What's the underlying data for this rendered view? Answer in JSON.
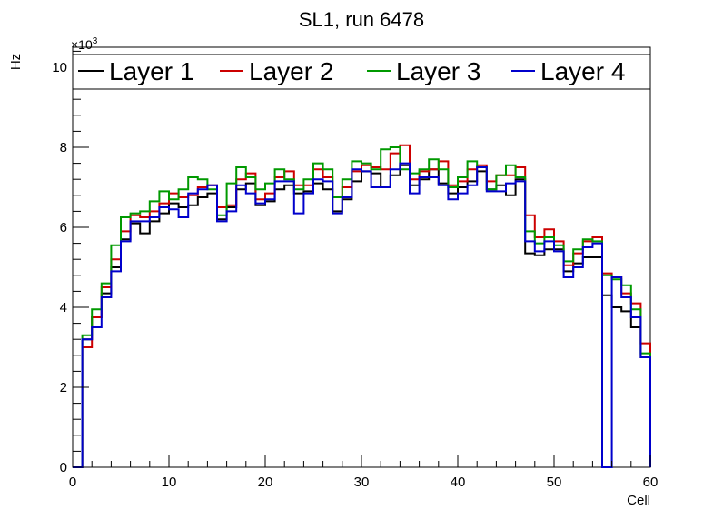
{
  "chart_data": {
    "type": "step-histogram",
    "title": "SL1, run 6478",
    "xlabel": "Cell",
    "ylabel": "Hz",
    "y_multiplier": "×10",
    "y_multiplier_exp": "3",
    "xlim": [
      0,
      60
    ],
    "ylim": [
      0,
      10.5
    ],
    "x_ticks": [
      0,
      10,
      20,
      30,
      40,
      50,
      60
    ],
    "y_ticks": [
      0,
      2,
      4,
      6,
      8,
      10
    ],
    "x_tick_labels": [
      "0",
      "10",
      "20",
      "30",
      "40",
      "50",
      "60"
    ],
    "y_tick_labels": [
      "0",
      "2",
      "4",
      "6",
      "8",
      "10"
    ],
    "legend_position": "top",
    "series": [
      {
        "name": "Layer 1",
        "color": "#000000",
        "values": [
          0,
          3.2,
          3.75,
          4.35,
          5.0,
          5.7,
          6.1,
          5.85,
          6.15,
          6.35,
          6.6,
          6.5,
          6.55,
          6.75,
          6.85,
          6.2,
          6.5,
          6.95,
          7.1,
          6.55,
          6.65,
          6.95,
          7.05,
          6.85,
          6.9,
          7.1,
          6.95,
          6.4,
          6.7,
          7.15,
          7.4,
          7.35,
          7.0,
          7.3,
          7.55,
          7.05,
          7.2,
          7.45,
          7.1,
          6.85,
          7.0,
          7.15,
          7.4,
          6.95,
          7.05,
          6.8,
          7.2,
          5.35,
          5.3,
          5.45,
          5.45,
          4.9,
          5.1,
          5.25,
          5.25,
          4.3,
          4.0,
          3.9,
          3.5,
          2.75
        ]
      },
      {
        "name": "Layer 2",
        "color": "#cc0000",
        "values": [
          0,
          3.0,
          3.75,
          4.5,
          5.2,
          5.9,
          6.3,
          6.25,
          6.4,
          6.6,
          6.85,
          6.75,
          6.8,
          7.0,
          7.05,
          6.5,
          6.55,
          7.2,
          7.35,
          6.7,
          6.85,
          7.25,
          7.4,
          7.05,
          7.05,
          7.45,
          7.25,
          6.75,
          7.0,
          7.4,
          7.55,
          7.5,
          7.45,
          7.85,
          8.05,
          7.2,
          7.4,
          7.45,
          7.65,
          7.05,
          7.15,
          7.45,
          7.55,
          7.15,
          7.3,
          7.3,
          7.5,
          6.3,
          5.75,
          5.95,
          5.65,
          5.05,
          5.35,
          5.65,
          5.75,
          4.85,
          4.75,
          4.35,
          4.1,
          3.1
        ]
      },
      {
        "name": "Layer 3",
        "color": "#009900",
        "values": [
          0,
          3.3,
          3.95,
          4.6,
          5.55,
          6.25,
          6.35,
          6.4,
          6.65,
          6.9,
          6.7,
          6.95,
          7.25,
          7.2,
          6.95,
          6.3,
          7.1,
          7.5,
          7.25,
          6.95,
          7.1,
          7.45,
          7.2,
          6.95,
          7.2,
          7.6,
          7.45,
          6.75,
          7.2,
          7.65,
          7.6,
          7.45,
          7.95,
          8.0,
          7.45,
          7.35,
          7.45,
          7.7,
          7.45,
          7.0,
          7.25,
          7.65,
          7.5,
          6.95,
          7.3,
          7.55,
          7.25,
          5.9,
          5.6,
          5.75,
          5.55,
          5.15,
          5.45,
          5.7,
          5.65,
          4.8,
          4.7,
          4.55,
          3.95,
          2.85
        ]
      },
      {
        "name": "Layer 4",
        "color": "#0000cc",
        "values": [
          0,
          3.2,
          3.5,
          4.25,
          4.9,
          5.65,
          6.15,
          6.15,
          6.25,
          6.5,
          6.45,
          6.25,
          6.85,
          6.95,
          7.05,
          6.15,
          6.4,
          7.05,
          6.85,
          6.6,
          6.7,
          7.15,
          7.15,
          6.35,
          6.85,
          7.2,
          7.15,
          6.35,
          6.75,
          7.45,
          7.4,
          7.0,
          7.0,
          7.45,
          7.6,
          6.85,
          7.25,
          7.25,
          7.05,
          6.7,
          6.85,
          7.05,
          7.5,
          6.9,
          6.9,
          7.1,
          7.15,
          5.65,
          5.4,
          5.65,
          5.4,
          4.75,
          5.0,
          5.5,
          5.6,
          0.0,
          4.75,
          4.25,
          3.75,
          2.75
        ]
      }
    ]
  }
}
